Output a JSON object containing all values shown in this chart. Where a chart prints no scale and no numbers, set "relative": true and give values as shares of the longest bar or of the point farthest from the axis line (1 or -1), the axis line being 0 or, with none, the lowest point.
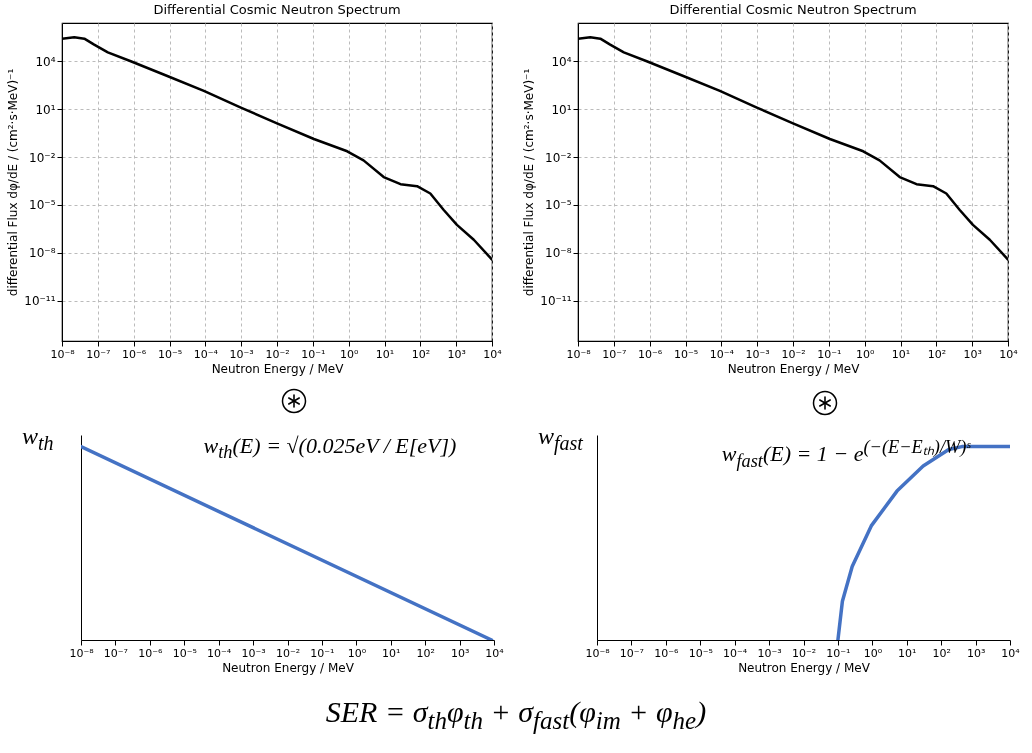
{
  "chart_data": [
    {
      "type": "line",
      "title": "Differential Cosmic Neutron Spectrum",
      "xlabel": "Neutron Energy / MeV",
      "ylabel": "differential Flux dφ/dE / (cm²·s·MeV)⁻¹",
      "log": "xy",
      "grid": true,
      "line_style": "solid",
      "x": [
        1e-08,
        2.2e-08,
        4.2e-08,
        7.9e-08,
        1.9e-07,
        8.3e-07,
        8.7e-06,
        9.1e-05,
        0.00098,
        0.01,
        0.107,
        0.91,
        2.6,
        9.5,
        28,
        81,
        190,
        450,
        1050,
        3100,
        10000.0
      ],
      "series": [
        {
          "color": "#000000",
          "values": [
            260000.0,
            320000.0,
            260000.0,
            110000.0,
            36000.0,
            10000.0,
            1200.0,
            140,
            12.6,
            1.3,
            0.135,
            0.023,
            0.0062,
            0.00056,
            0.0002,
            0.00015,
            5.2e-05,
            4.8e-06,
            5.6e-07,
            6.6e-08,
            3.8e-09
          ]
        }
      ],
      "xlim": [
        1e-08,
        10000.0
      ],
      "ylim": [
        3e-14,
        2500000.0
      ],
      "xticks": [
        {
          "value": 1e-08,
          "label": "10⁻⁸"
        },
        {
          "value": 1e-07,
          "label": "10⁻⁷"
        },
        {
          "value": 1e-06,
          "label": "10⁻⁶"
        },
        {
          "value": 1e-05,
          "label": "10⁻⁵"
        },
        {
          "value": 0.0001,
          "label": "10⁻⁴"
        },
        {
          "value": 0.001,
          "label": "10⁻³"
        },
        {
          "value": 0.01,
          "label": "10⁻²"
        },
        {
          "value": 0.1,
          "label": "10⁻¹"
        },
        {
          "value": 1,
          "label": "10⁰"
        },
        {
          "value": 10,
          "label": "10¹"
        },
        {
          "value": 100,
          "label": "10²"
        },
        {
          "value": 1000,
          "label": "10³"
        },
        {
          "value": 10000,
          "label": "10⁴"
        }
      ],
      "yticks": [
        {
          "value": 1e-11,
          "label": "10⁻¹¹"
        },
        {
          "value": 1e-08,
          "label": "10⁻⁸"
        },
        {
          "value": 1e-05,
          "label": "10⁻⁵"
        },
        {
          "value": 0.01,
          "label": "10⁻²"
        },
        {
          "value": 10,
          "label": "10¹"
        },
        {
          "value": 10000,
          "label": "10⁴"
        }
      ]
    },
    {
      "type": "line",
      "title": "Differential Cosmic Neutron Spectrum",
      "xlabel": "Neutron Energy / MeV",
      "ylabel": "differential Flux dφ/dE / (cm²·s·MeV)⁻¹",
      "log": "xy",
      "grid": true,
      "line_style": "solid",
      "x": [
        1e-08,
        2.2e-08,
        4.2e-08,
        7.9e-08,
        1.9e-07,
        8.3e-07,
        8.7e-06,
        9.1e-05,
        0.00098,
        0.01,
        0.107,
        0.91,
        2.6,
        9.5,
        28,
        81,
        190,
        450,
        1050,
        3100,
        10000.0
      ],
      "series": [
        {
          "color": "#000000",
          "values": [
            260000.0,
            320000.0,
            260000.0,
            110000.0,
            36000.0,
            10000.0,
            1200.0,
            140,
            12.6,
            1.3,
            0.135,
            0.023,
            0.0062,
            0.00056,
            0.0002,
            0.00015,
            5.2e-05,
            4.8e-06,
            5.6e-07,
            6.6e-08,
            3.8e-09
          ]
        }
      ],
      "xlim": [
        1e-08,
        10000.0
      ],
      "ylim": [
        3e-14,
        2500000.0
      ],
      "xticks": [
        {
          "value": 1e-08,
          "label": "10⁻⁸"
        },
        {
          "value": 1e-07,
          "label": "10⁻⁷"
        },
        {
          "value": 1e-06,
          "label": "10⁻⁶"
        },
        {
          "value": 1e-05,
          "label": "10⁻⁵"
        },
        {
          "value": 0.0001,
          "label": "10⁻⁴"
        },
        {
          "value": 0.001,
          "label": "10⁻³"
        },
        {
          "value": 0.01,
          "label": "10⁻²"
        },
        {
          "value": 0.1,
          "label": "10⁻¹"
        },
        {
          "value": 1,
          "label": "10⁰"
        },
        {
          "value": 10,
          "label": "10¹"
        },
        {
          "value": 100,
          "label": "10²"
        },
        {
          "value": 1000,
          "label": "10³"
        },
        {
          "value": 10000,
          "label": "10⁴"
        }
      ],
      "yticks": [
        {
          "value": 1e-11,
          "label": "10⁻¹¹"
        },
        {
          "value": 1e-08,
          "label": "10⁻⁸"
        },
        {
          "value": 1e-05,
          "label": "10⁻⁵"
        },
        {
          "value": 0.01,
          "label": "10⁻²"
        },
        {
          "value": 10,
          "label": "10¹"
        },
        {
          "value": 10000,
          "label": "10⁴"
        }
      ]
    },
    {
      "type": "line",
      "xlabel": "Neutron Energy / MeV",
      "ylabel": "w$_{th}$",
      "log": "x",
      "relative": true,
      "line_style": "solid",
      "annotations": [
        "w$_{th}$(E) = √(0.025eV / E[eV])"
      ],
      "x": [
        1e-08,
        8500.0
      ],
      "series": [
        {
          "color": "#4472c4",
          "values": [
            1,
            0
          ]
        }
      ],
      "xlim": [
        1e-08,
        10000.0
      ],
      "xticks": [
        {
          "value": 1e-08,
          "label": "10⁻⁸"
        },
        {
          "value": 1e-07,
          "label": "10⁻⁷"
        },
        {
          "value": 1e-06,
          "label": "10⁻⁶"
        },
        {
          "value": 1e-05,
          "label": "10⁻⁵"
        },
        {
          "value": 0.0001,
          "label": "10⁻⁴"
        },
        {
          "value": 0.001,
          "label": "10⁻³"
        },
        {
          "value": 0.01,
          "label": "10⁻²"
        },
        {
          "value": 0.1,
          "label": "10⁻¹"
        },
        {
          "value": 1,
          "label": "10⁰"
        },
        {
          "value": 10,
          "label": "10¹"
        },
        {
          "value": 100,
          "label": "10²"
        },
        {
          "value": 1000,
          "label": "10³"
        },
        {
          "value": 10000,
          "label": "10⁴"
        }
      ]
    },
    {
      "type": "line",
      "xlabel": "Neutron Energy / MeV",
      "ylabel": "w$_{fast}$",
      "log": "x",
      "relative": true,
      "line_style": "solid",
      "annotations": [
        "w$_{fast}$(E) = 1 − e$^{(−(E−Eₜₕ)/W)ˢ}$"
      ],
      "x": [
        0.1,
        0.135,
        0.26,
        0.93,
        5.2,
        30,
        166,
        400,
        10000.0
      ],
      "series": [
        {
          "color": "#4472c4",
          "values": [
            0,
            0.2,
            0.38,
            0.59,
            0.77,
            0.9,
            0.985,
            1,
            1
          ]
        }
      ],
      "xlim": [
        1e-08,
        10000.0
      ],
      "xticks": [
        {
          "value": 1e-08,
          "label": "10⁻⁸"
        },
        {
          "value": 1e-07,
          "label": "10⁻⁷"
        },
        {
          "value": 1e-06,
          "label": "10⁻⁶"
        },
        {
          "value": 1e-05,
          "label": "10⁻⁵"
        },
        {
          "value": 0.0001,
          "label": "10⁻⁴"
        },
        {
          "value": 0.001,
          "label": "10⁻³"
        },
        {
          "value": 0.01,
          "label": "10⁻²"
        },
        {
          "value": 0.1,
          "label": "10⁻¹"
        },
        {
          "value": 1,
          "label": "10⁰"
        },
        {
          "value": 10,
          "label": "10¹"
        },
        {
          "value": 100,
          "label": "10²"
        },
        {
          "value": 1000,
          "label": "10³"
        },
        {
          "value": 10000,
          "label": "10⁴"
        }
      ]
    },
    {
      "type": "other",
      "annotations": [
        "SER = σ$_{th}$φ$_{th}$ + σ$_{fast}$(φ$_{im}$ + φ$_{he}$)"
      ]
    }
  ]
}
